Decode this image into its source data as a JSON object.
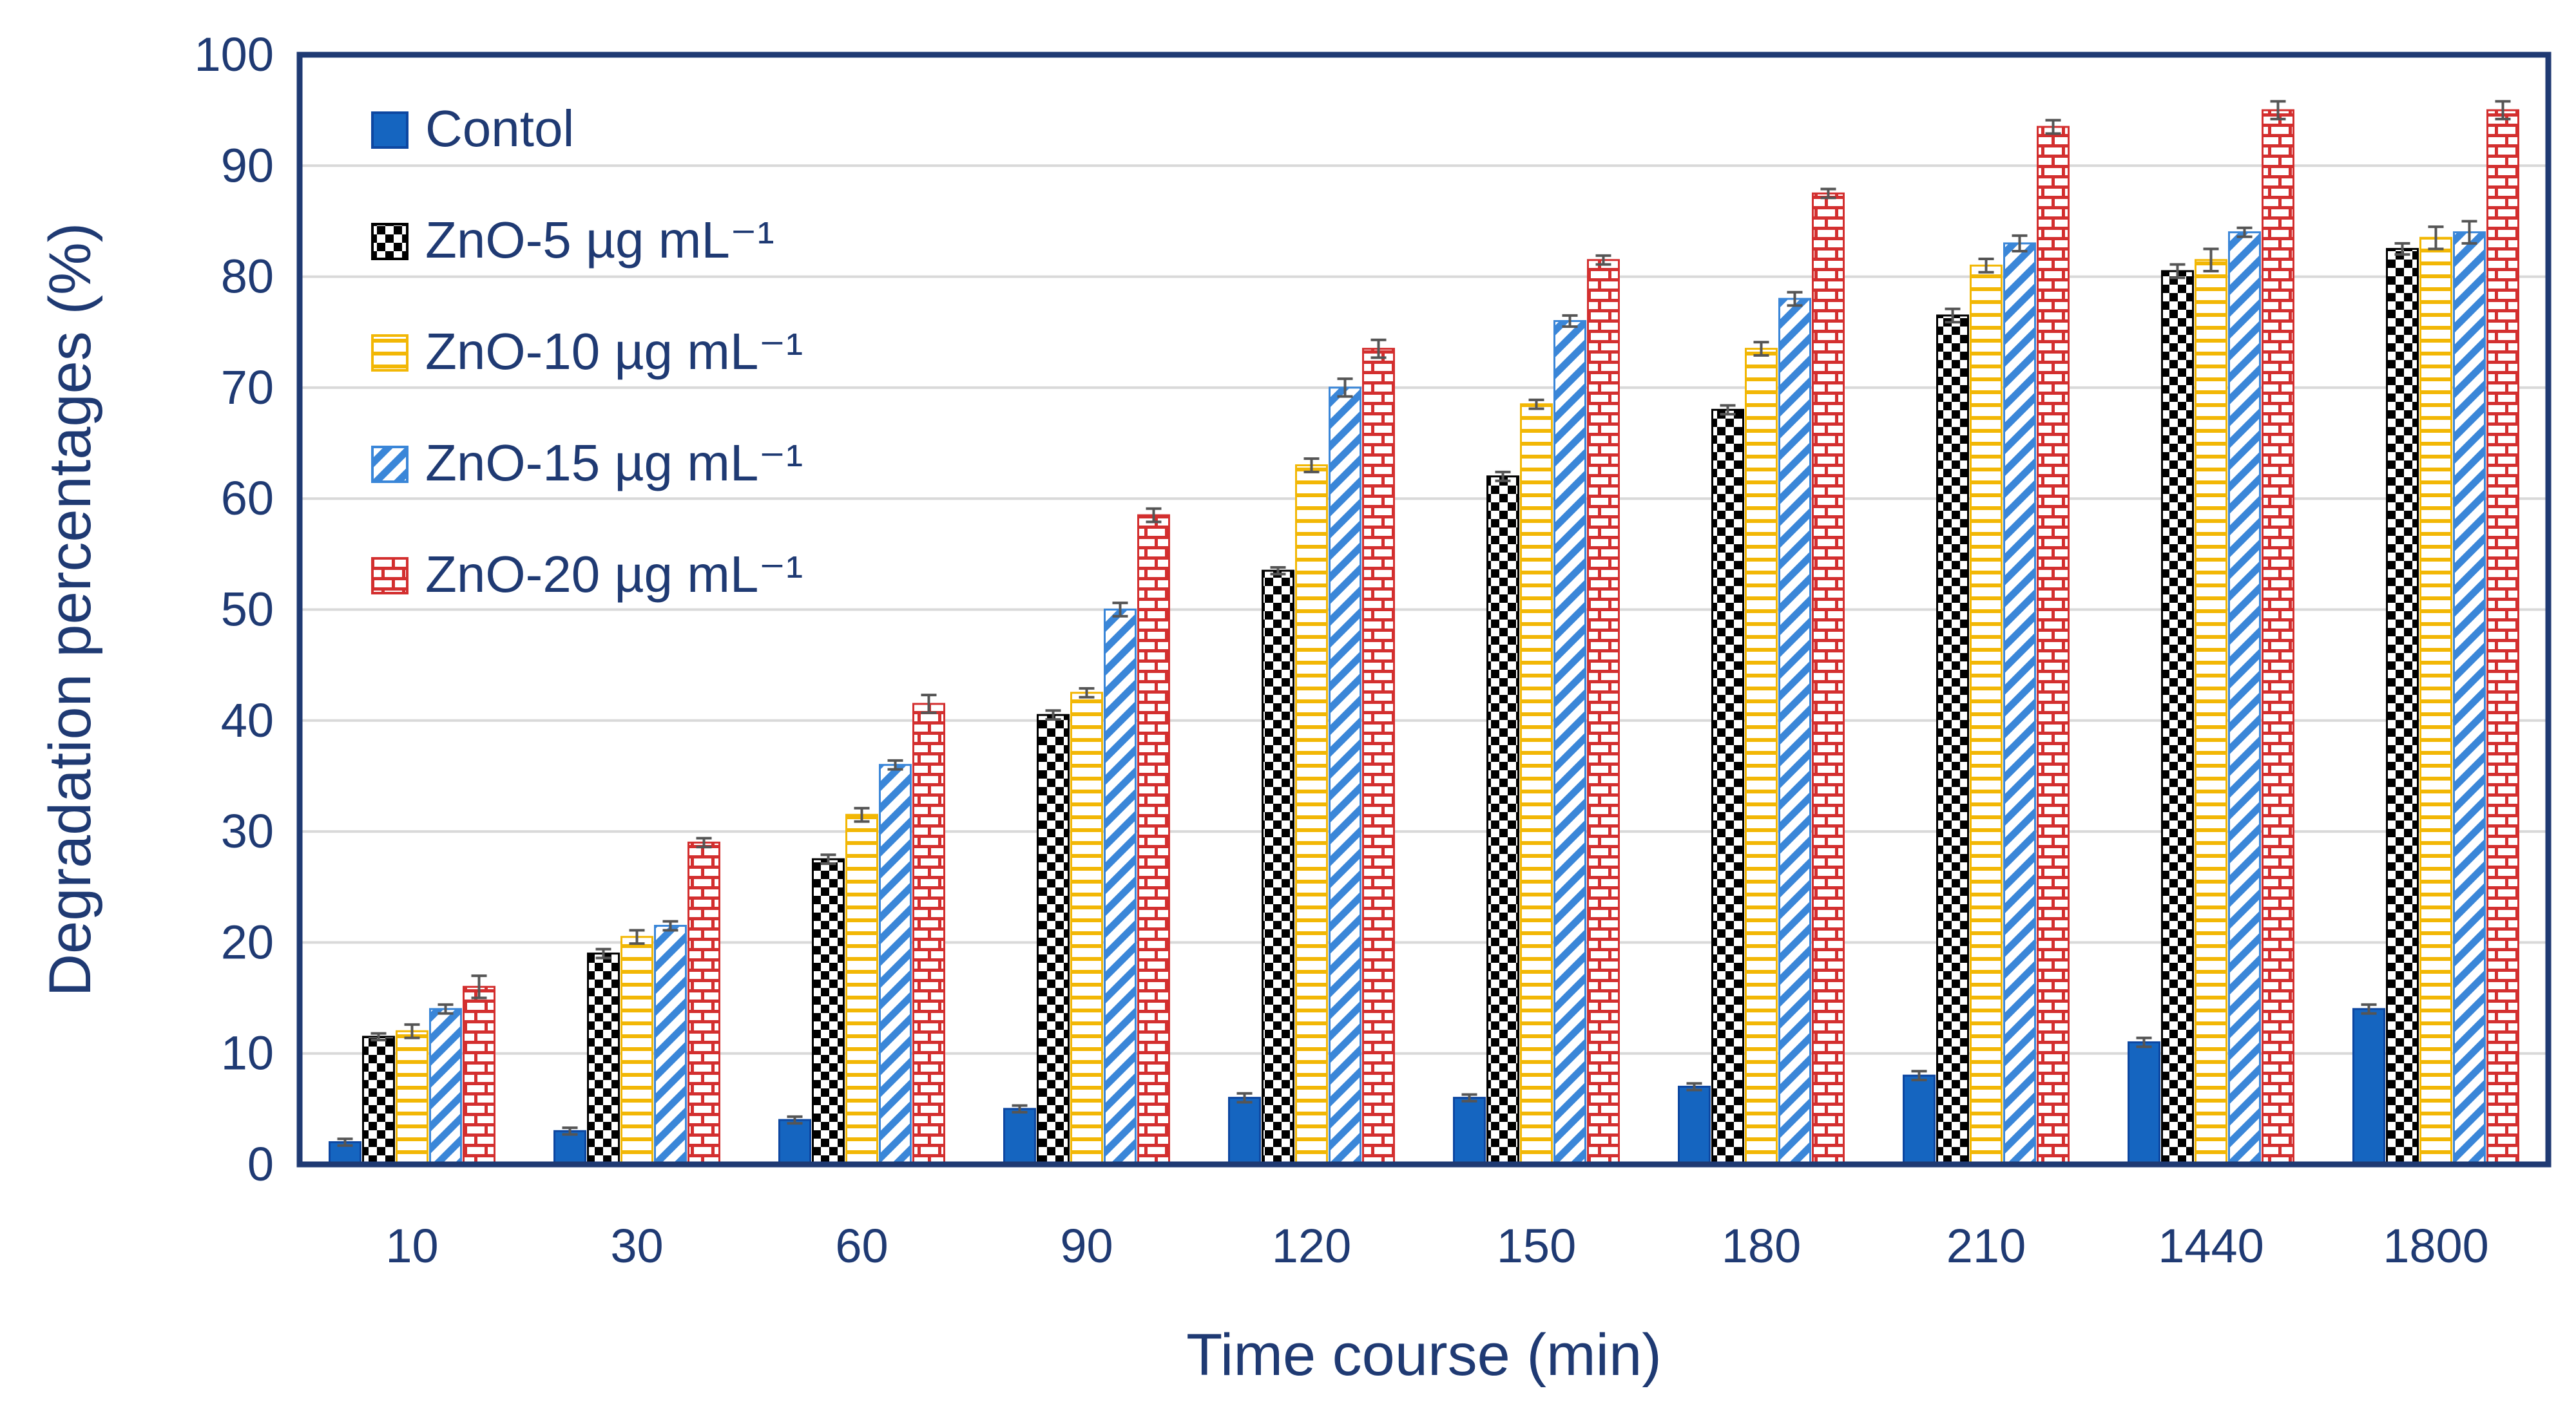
{
  "chart_data": {
    "type": "bar",
    "xlabel": "Time course (min)",
    "ylabel": "Degradation percentages (%)",
    "ylim": [
      0,
      100
    ],
    "yticks": [
      0,
      10,
      20,
      30,
      40,
      50,
      60,
      70,
      80,
      90,
      100
    ],
    "grid": true,
    "legend_position": "top-left",
    "categories": [
      "10",
      "30",
      "60",
      "90",
      "120",
      "150",
      "180",
      "210",
      "1440",
      "1800"
    ],
    "series": [
      {
        "name": "Contol",
        "pattern": "solid",
        "color": "#1565c0",
        "values": [
          2,
          3,
          4,
          5,
          6,
          6,
          7,
          8,
          11,
          14
        ],
        "errors": [
          0.3,
          0.3,
          0.3,
          0.3,
          0.4,
          0.3,
          0.3,
          0.4,
          0.4,
          0.4
        ]
      },
      {
        "name": "ZnO-5 µg mL⁻¹",
        "pattern": "checker",
        "color": "#000000",
        "values": [
          11.5,
          19,
          27.5,
          40.5,
          53.5,
          62,
          68,
          76.5,
          80.5,
          82.5
        ],
        "errors": [
          0.3,
          0.4,
          0.4,
          0.4,
          0.3,
          0.4,
          0.4,
          0.6,
          0.6,
          0.5
        ]
      },
      {
        "name": "ZnO-10 µg mL⁻¹",
        "pattern": "hstripe",
        "color": "#f2b705",
        "values": [
          12,
          20.5,
          31.5,
          42.5,
          63,
          68.5,
          73.5,
          81,
          81.5,
          83.5
        ],
        "errors": [
          0.6,
          0.6,
          0.6,
          0.4,
          0.6,
          0.4,
          0.6,
          0.6,
          1.0,
          1.0
        ]
      },
      {
        "name": "ZnO-15 µg mL⁻¹",
        "pattern": "diag",
        "color": "#3a86d8",
        "values": [
          14,
          21.5,
          36,
          50,
          70,
          76,
          78,
          83,
          84,
          84
        ],
        "errors": [
          0.4,
          0.4,
          0.4,
          0.6,
          0.8,
          0.5,
          0.6,
          0.7,
          0.4,
          1.0
        ]
      },
      {
        "name": "ZnO-20 µg mL⁻¹",
        "pattern": "brick",
        "color": "#d32f2f",
        "values": [
          16,
          29,
          41.5,
          58.5,
          73.5,
          81.5,
          87.5,
          93.5,
          95,
          95
        ],
        "errors": [
          1.0,
          0.4,
          0.8,
          0.6,
          0.8,
          0.4,
          0.4,
          0.6,
          0.8,
          0.8
        ]
      }
    ]
  }
}
